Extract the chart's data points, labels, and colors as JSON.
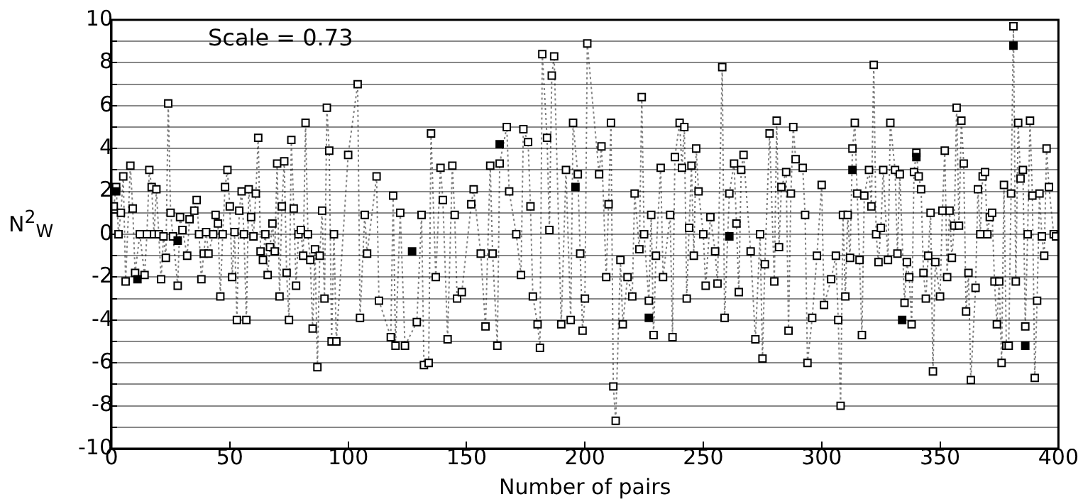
{
  "chart_data": {
    "type": "line",
    "xlabel": "Number of pairs",
    "ylabel": "N$^{2}$$_{W}$",
    "annotations": [
      "Scale = 0.73"
    ],
    "xlim": [
      0,
      400
    ],
    "xticks": [
      0,
      50,
      100,
      150,
      200,
      250,
      300,
      350,
      400
    ],
    "ylim": [
      -10,
      10
    ],
    "yticks": [
      -10,
      {
        "value": -9,
        "label": null
      },
      -8,
      {
        "value": -7,
        "label": null
      },
      -6,
      {
        "value": -5,
        "label": null
      },
      -4,
      {
        "value": -3,
        "label": null
      },
      -2,
      {
        "value": -1,
        "label": null
      },
      0,
      {
        "value": 1,
        "label": null
      },
      2,
      {
        "value": 3,
        "label": null
      },
      4,
      {
        "value": 5,
        "label": null
      },
      6,
      {
        "value": 7,
        "label": null
      },
      8,
      {
        "value": 9,
        "label": null
      },
      10
    ],
    "grid": "y",
    "legend": false,
    "marker": "square",
    "line_style": "dotted",
    "series": [
      {
        "color": "#000000",
        "x": [
          1,
          2,
          3,
          4,
          5,
          6,
          8,
          9,
          10,
          12,
          14,
          15,
          16,
          17,
          18,
          19,
          20,
          21,
          22,
          23,
          24,
          25,
          26,
          28,
          29,
          30,
          32,
          33,
          35,
          36,
          37,
          38,
          39,
          40,
          41,
          43,
          44,
          45,
          46,
          47,
          48,
          49,
          50,
          51,
          52,
          53,
          54,
          55,
          56,
          57,
          58,
          59,
          60,
          61,
          62,
          63,
          64,
          65,
          66,
          67,
          68,
          69,
          70,
          71,
          72,
          73,
          74,
          75,
          76,
          77,
          78,
          79,
          80,
          81,
          82,
          83,
          84,
          85,
          86,
          87,
          88,
          89,
          90,
          91,
          92,
          93,
          94,
          95,
          100,
          104,
          105,
          107,
          108,
          112,
          113,
          118,
          119,
          120,
          122,
          124,
          129,
          131,
          132,
          134,
          135,
          137,
          139,
          140,
          142,
          144,
          145,
          146,
          148,
          152,
          153,
          156,
          158,
          160,
          161,
          163,
          164,
          167,
          168,
          171,
          173,
          174,
          176,
          177,
          178,
          180,
          181,
          182,
          184,
          185,
          186,
          187,
          190,
          192,
          194,
          195,
          197,
          198,
          199,
          200,
          201,
          206,
          207,
          209,
          210,
          211,
          212,
          213,
          215,
          216,
          218,
          220,
          221,
          223,
          224,
          225,
          227,
          228,
          229,
          230,
          232,
          233,
          236,
          237,
          238,
          240,
          241,
          242,
          243,
          244,
          245,
          246,
          247,
          248,
          250,
          251,
          253,
          255,
          256,
          258,
          259,
          261,
          263,
          264,
          265,
          266,
          267,
          270,
          272,
          274,
          275,
          276,
          278,
          280,
          281,
          282,
          283,
          285,
          286,
          287,
          288,
          289,
          292,
          293,
          294,
          296,
          298,
          300,
          301,
          304,
          306,
          307,
          308,
          309,
          310,
          311,
          312,
          313,
          314,
          315,
          316,
          317,
          318,
          320,
          321,
          322,
          323,
          324,
          325,
          326,
          328,
          329,
          331,
          332,
          333,
          335,
          336,
          337,
          338,
          339,
          340,
          341,
          342,
          343,
          344,
          345,
          346,
          347,
          348,
          350,
          351,
          352,
          353,
          354,
          355,
          356,
          357,
          358,
          359,
          360,
          361,
          362,
          363,
          365,
          366,
          367,
          368,
          369,
          370,
          371,
          372,
          373,
          374,
          375,
          376,
          377,
          378,
          379,
          380,
          381,
          382,
          383,
          384,
          385,
          386,
          387,
          388,
          389,
          390,
          391,
          392,
          393,
          394,
          395,
          396,
          398,
          399
        ],
        "values": [
          1.3,
          2.2,
          0,
          1,
          2.7,
          -2.2,
          3.2,
          1.2,
          -1.8,
          0,
          -1.9,
          0,
          3,
          2.2,
          0,
          2.1,
          0,
          -2.1,
          -0.1,
          -1.1,
          6.1,
          1,
          -0.1,
          -2.4,
          0.8,
          0.2,
          -1,
          0.7,
          1.1,
          1.6,
          0,
          -2.1,
          -0.9,
          0.1,
          -0.9,
          0,
          0.9,
          0.5,
          -2.9,
          0,
          2.2,
          3,
          1.3,
          -2,
          0.1,
          -4,
          1.1,
          2,
          0,
          -4,
          2.1,
          0.8,
          -0.1,
          1.9,
          4.5,
          -0.8,
          -1.2,
          0,
          -1.9,
          -0.6,
          0.5,
          -0.8,
          3.3,
          -2.9,
          1.3,
          3.4,
          -1.8,
          -4,
          4.4,
          1.2,
          -2.4,
          0,
          0.2,
          -1,
          5.2,
          0,
          -1.2,
          -4.4,
          -0.7,
          -6.2,
          -1,
          1.1,
          -3,
          5.9,
          3.9,
          -5,
          0,
          -5,
          3.7,
          7,
          -3.9,
          0.9,
          -0.9,
          2.7,
          -3.1,
          -4.8,
          1.8,
          -5.2,
          1,
          -5.2,
          -4.1,
          0.9,
          -6.1,
          -6,
          4.7,
          -2,
          3.1,
          1.6,
          -4.9,
          3.2,
          0.9,
          -3,
          -2.7,
          1.4,
          2.1,
          -0.9,
          -4.3,
          3.2,
          -0.9,
          -5.2,
          3.3,
          5,
          2,
          0,
          -1.9,
          4.9,
          4.3,
          1.3,
          -2.9,
          -4.2,
          -5.3,
          8.4,
          4.5,
          0.2,
          7.4,
          8.3,
          -4.2,
          3,
          -4,
          5.2,
          2.8,
          -0.9,
          -4.5,
          -3,
          8.9,
          2.8,
          4.1,
          -2,
          1.4,
          5.2,
          -7.1,
          -8.7,
          -1.2,
          -4.2,
          -2,
          -2.9,
          1.9,
          -0.7,
          6.4,
          0,
          -3.1,
          0.9,
          -4.7,
          -1,
          3.1,
          -2,
          0.9,
          -4.8,
          3.6,
          5.2,
          3.1,
          5,
          -3,
          0.3,
          3.2,
          -1,
          4,
          2,
          0,
          -2.4,
          0.8,
          -0.8,
          -2.3,
          7.8,
          -3.9,
          1.9,
          3.3,
          0.5,
          -2.7,
          3,
          3.7,
          -0.8,
          -4.9,
          0,
          -5.8,
          -1.4,
          4.7,
          -2.2,
          5.3,
          -0.6,
          2.2,
          2.9,
          -4.5,
          1.9,
          5,
          3.5,
          3.1,
          0.9,
          -6,
          -3.9,
          -1,
          2.3,
          -3.3,
          -2.1,
          -1,
          -4,
          -8,
          0.9,
          -2.9,
          0.9,
          -1.1,
          4,
          5.2,
          1.9,
          -1.2,
          -4.7,
          1.8,
          3,
          1.3,
          7.9,
          0,
          -1.3,
          0.3,
          3,
          -1.2,
          5.2,
          3,
          -0.9,
          2.8,
          -3.2,
          -1.3,
          -2,
          -4.2,
          2.9,
          3.8,
          2.7,
          2.1,
          -1.8,
          -3,
          -1,
          1,
          -6.4,
          -1.3,
          -2.9,
          1.1,
          3.9,
          -2,
          1.1,
          -1.1,
          0.4,
          5.9,
          0.4,
          5.3,
          3.3,
          -3.6,
          -1.8,
          -6.8,
          -2.5,
          2.1,
          0,
          2.7,
          2.9,
          0,
          0.8,
          1,
          -2.2,
          -4.2,
          -2.2,
          -6,
          2.3,
          -5.2,
          -5.2,
          1.9,
          9.7,
          -2.2,
          5.2,
          2.6,
          3,
          -4.3,
          0,
          5.3,
          1.8,
          -6.7,
          -3.1,
          1.9,
          -0.1,
          -1,
          4,
          2.2,
          0,
          -0.1
        ]
      },
      {
        "type": "scatter",
        "color": "#000000",
        "x": [
          2,
          11,
          28,
          127,
          164,
          196,
          227,
          261,
          313,
          334,
          340,
          381,
          386
        ],
        "values": [
          2,
          -2.1,
          -0.3,
          -0.8,
          4.2,
          2.2,
          -3.9,
          -0.1,
          3,
          -4,
          3.6,
          8.8,
          -5.2
        ]
      }
    ]
  }
}
